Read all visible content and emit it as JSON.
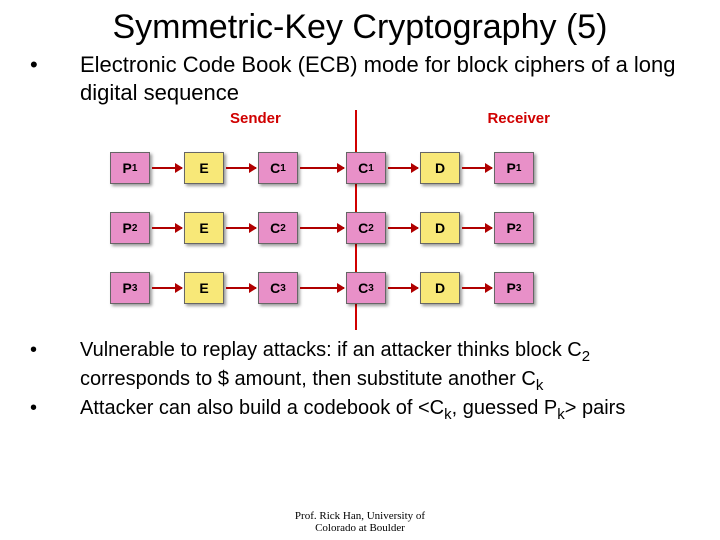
{
  "title": "Symmetric-Key Cryptography (5)",
  "bullets": {
    "b1": "Electronic Code Book (ECB) mode for block ciphers of a long digital sequence",
    "b2_pre": "Vulnerable to replay attacks: if an attacker thinks block C",
    "b2_sub1": "2",
    "b2_mid": " corresponds to $ amount, then substitute another C",
    "b2_sub2": "k",
    "b3_pre": "Attacker can also build a codebook of <C",
    "b3_sub1": "k",
    "b3_mid": ", guessed P",
    "b3_sub2": "k",
    "b3_post": "> pairs"
  },
  "diagram": {
    "sender": "Sender",
    "receiver": "Receiver",
    "rows": [
      {
        "p": "P",
        "pn": "1",
        "e": "E",
        "c": "C",
        "cn": "1",
        "d": "D"
      },
      {
        "p": "P",
        "pn": "2",
        "e": "E",
        "c": "C",
        "cn": "2",
        "d": "D"
      },
      {
        "p": "P",
        "pn": "3",
        "e": "E",
        "c": "C",
        "cn": "3",
        "d": "D"
      }
    ],
    "colors": {
      "pink": "#e890c8",
      "yellow": "#f8e878",
      "arrow": "#b00000",
      "label": "#d00000"
    }
  },
  "footer": {
    "l1": "Prof. Rick Han, University of",
    "l2": "Colorado at Boulder"
  },
  "dot": "•"
}
